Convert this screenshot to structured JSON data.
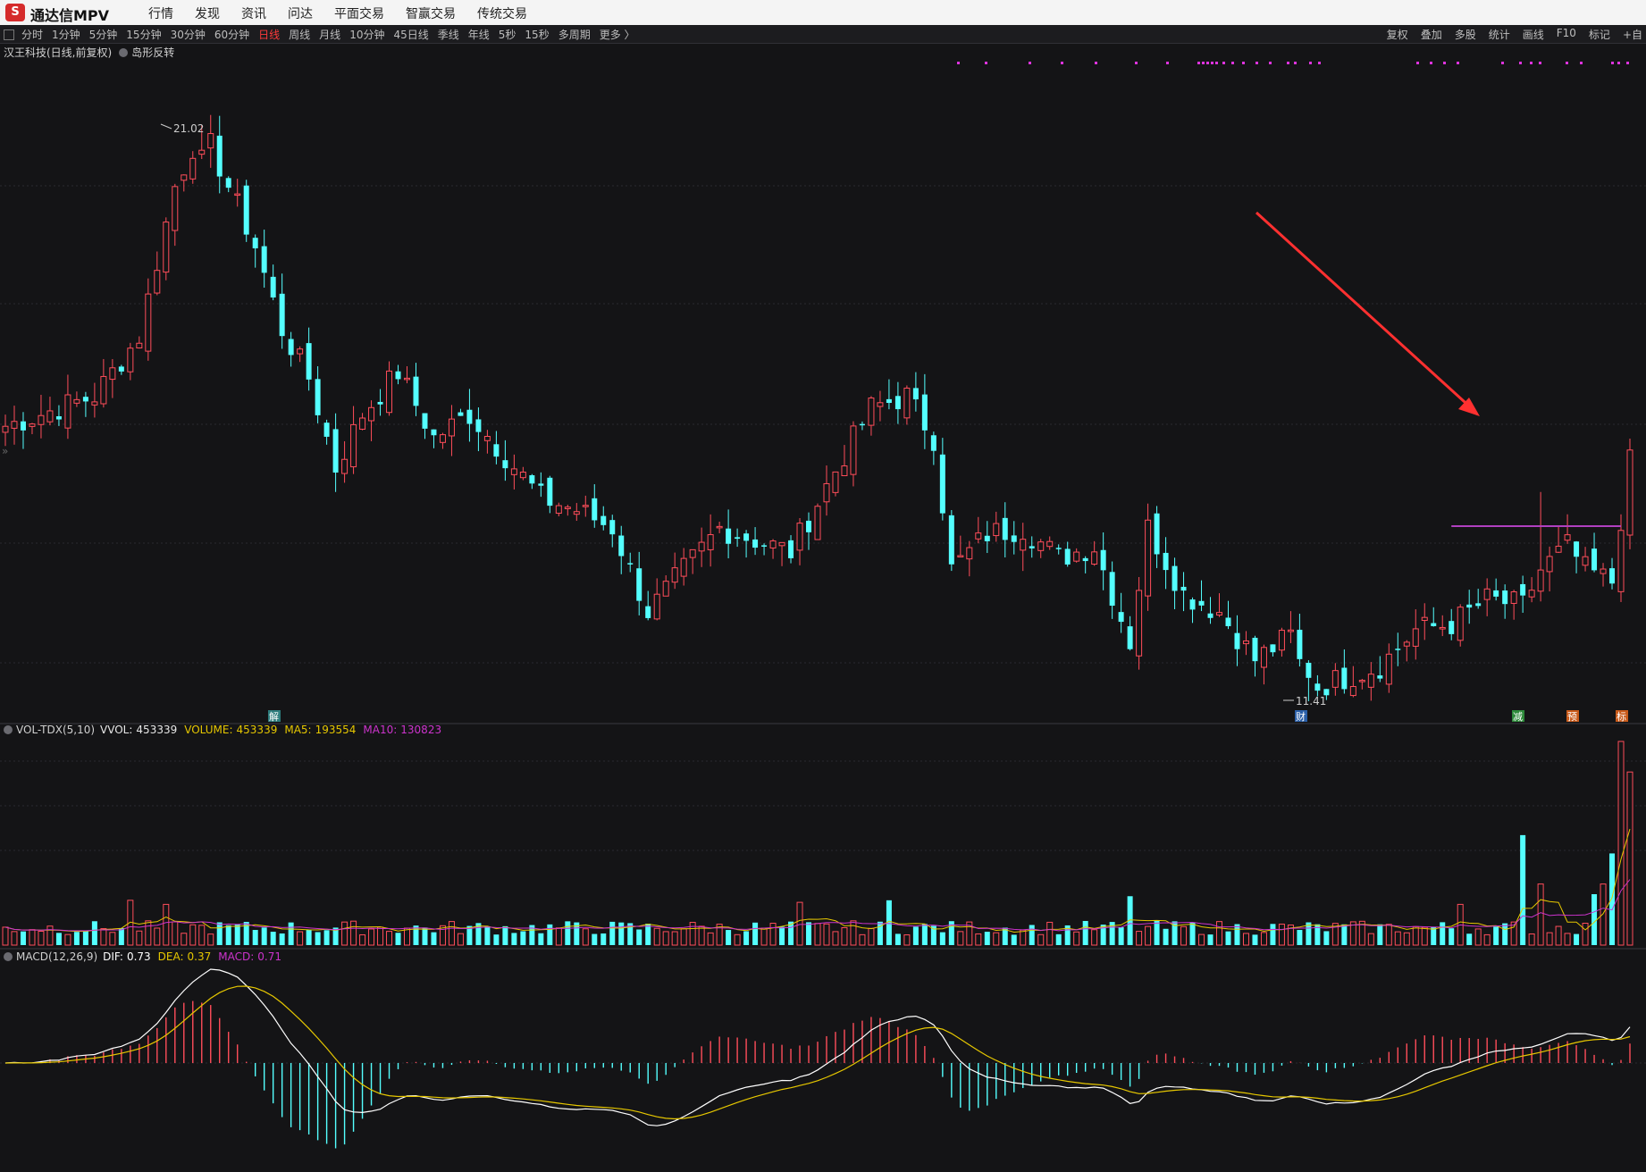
{
  "app": {
    "title": "通达信MPV",
    "logo_glyph": "S"
  },
  "menu": [
    "行情",
    "发现",
    "资讯",
    "问达",
    "平面交易",
    "智赢交易",
    "传统交易"
  ],
  "periods": [
    "分时",
    "1分钟",
    "5分钟",
    "15分钟",
    "30分钟",
    "60分钟",
    "日线",
    "周线",
    "月线",
    "10分钟",
    "45日线",
    "季线",
    "年线",
    "5秒",
    "15秒",
    "多周期",
    "更多 〉"
  ],
  "active_period": "日线",
  "right_tools": [
    "复权",
    "叠加",
    "多股",
    "统计",
    "画线",
    "F10",
    "标记",
    "+自"
  ],
  "stock": {
    "title": "汉王科技(日线,前复权)",
    "indicator": "岛形反转"
  },
  "price_labels": {
    "high": "21.02",
    "low": "11.41"
  },
  "markers": {
    "jie": "解",
    "cai": "财",
    "jian": "减",
    "yu": "预",
    "biao": "标"
  },
  "vol_panel": {
    "name": "VOL-TDX(5,10)",
    "vvol_label": "VVOL:",
    "vvol": "453339",
    "volume_label": "VOLUME:",
    "volume": "453339",
    "ma5_label": "MA5:",
    "ma5": "193554",
    "ma10_label": "MA10:",
    "ma10": "130823"
  },
  "macd_panel": {
    "name": "MACD(12,26,9)",
    "dif_label": "DIF:",
    "dif": "0.73",
    "dea_label": "DEA:",
    "dea": "0.37",
    "macd_label": "MACD:",
    "macd": "0.71"
  },
  "colors": {
    "up": "#ff4d5a",
    "down": "#54ffff",
    "ma5": "#e6c700",
    "ma10": "#cc33cc",
    "dif": "#ffffff",
    "dea": "#e6c700",
    "arrow": "#ff3030",
    "resistance": "#b040c0"
  },
  "chart_data": {
    "type": "candlestick",
    "price_range": [
      11.41,
      21.02
    ],
    "anchors": [
      [
        0,
        16.0
      ],
      [
        10,
        16.5
      ],
      [
        15,
        17.5
      ],
      [
        19,
        20.0
      ],
      [
        22,
        21.0
      ],
      [
        25,
        20.0
      ],
      [
        28,
        19.0
      ],
      [
        31,
        17.6
      ],
      [
        34,
        16.8
      ],
      [
        37,
        15.3
      ],
      [
        40,
        16.2
      ],
      [
        44,
        16.9
      ],
      [
        48,
        15.8
      ],
      [
        52,
        16.2
      ],
      [
        56,
        15.5
      ],
      [
        60,
        14.8
      ],
      [
        64,
        14.6
      ],
      [
        68,
        14.3
      ],
      [
        72,
        12.9
      ],
      [
        76,
        13.6
      ],
      [
        80,
        14.3
      ],
      [
        84,
        14.1
      ],
      [
        88,
        13.9
      ],
      [
        92,
        15.0
      ],
      [
        97,
        16.3
      ],
      [
        101,
        16.5
      ],
      [
        104,
        15.8
      ],
      [
        106,
        13.6
      ],
      [
        110,
        14.2
      ],
      [
        114,
        14.3
      ],
      [
        118,
        13.8
      ],
      [
        122,
        14.0
      ],
      [
        124,
        13.2
      ],
      [
        126,
        12.4
      ],
      [
        128,
        14.3
      ],
      [
        132,
        13.2
      ],
      [
        136,
        12.9
      ],
      [
        140,
        12.1
      ],
      [
        144,
        12.5
      ],
      [
        146,
        11.6
      ],
      [
        150,
        11.8
      ],
      [
        154,
        12.0
      ],
      [
        158,
        12.6
      ],
      [
        162,
        12.7
      ],
      [
        166,
        13.1
      ],
      [
        170,
        13.0
      ],
      [
        172,
        13.6
      ],
      [
        175,
        14.0
      ],
      [
        177,
        13.6
      ],
      [
        180,
        13.4
      ],
      [
        182,
        15.5
      ]
    ],
    "n_candles": 183,
    "resistance_level": 14.33,
    "volume_max": 453339,
    "volume_spikes": [
      [
        14,
        2.2
      ],
      [
        18,
        2.0
      ],
      [
        89,
        2.1
      ],
      [
        99,
        2.2
      ],
      [
        126,
        2.4
      ],
      [
        163,
        2.0
      ],
      [
        170,
        5.4
      ],
      [
        172,
        3.0
      ],
      [
        178,
        2.5
      ],
      [
        179,
        3.0
      ],
      [
        180,
        4.5
      ],
      [
        181,
        10.0
      ],
      [
        182,
        8.5
      ]
    ],
    "macd": {
      "dif_last": 0.73,
      "dea_last": 0.37,
      "hist_last": 0.71
    }
  }
}
